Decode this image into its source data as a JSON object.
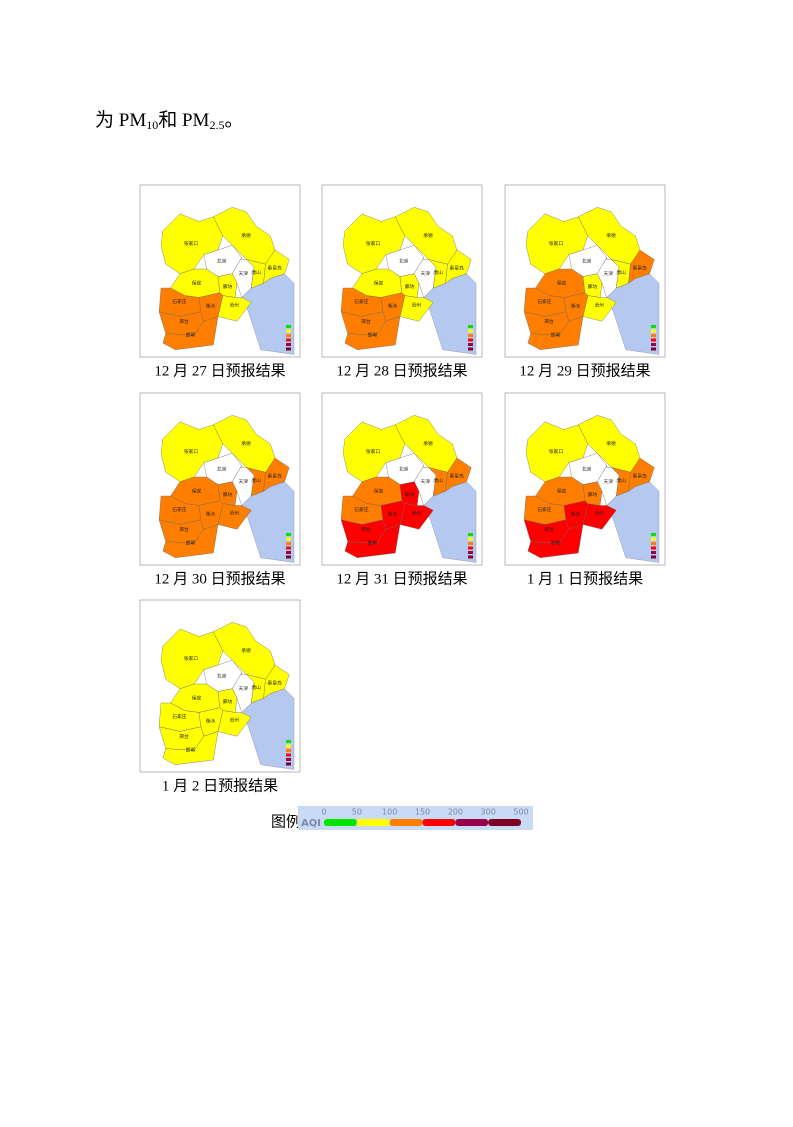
{
  "intro": {
    "parts": [
      "为 PM",
      "10",
      "和 PM",
      "2.5",
      "。"
    ]
  },
  "regions": [
    "张家口",
    "承德",
    "北京",
    "天津",
    "唐山",
    "秦皇岛",
    "保定",
    "廊坊",
    "沧州",
    "石家庄",
    "衡水",
    "邢台",
    "邯郸"
  ],
  "maps": [
    {
      "caption": "12 月 27 日预报结果",
      "fills": [
        "#ffff00",
        "#ffff00",
        "#ffffff",
        "#ffffff",
        "#ffff00",
        "#ffff00",
        "#ffff00",
        "#ffff00",
        "#ffff00",
        "#ff7e00",
        "#ff7e00",
        "#ff7e00",
        "#ff7e00"
      ]
    },
    {
      "caption": "12 月 28 日预报结果",
      "fills": [
        "#ffff00",
        "#ffff00",
        "#ffffff",
        "#ffffff",
        "#ffff00",
        "#ffff00",
        "#ffff00",
        "#ffff00",
        "#ffff00",
        "#ff7e00",
        "#ff7e00",
        "#ff7e00",
        "#ff7e00"
      ]
    },
    {
      "caption": "12 月 29 日预报结果",
      "fills": [
        "#ffff00",
        "#ffff00",
        "#ffffff",
        "#ffffff",
        "#ffff00",
        "#ff7e00",
        "#ff7e00",
        "#ffff00",
        "#ffff00",
        "#ff7e00",
        "#ff7e00",
        "#ff7e00",
        "#ff7e00"
      ]
    },
    {
      "caption": "12 月 30 日预报结果",
      "fills": [
        "#ffff00",
        "#ffff00",
        "#ffffff",
        "#ffffff",
        "#ff7e00",
        "#ff7e00",
        "#ff7e00",
        "#ff7e00",
        "#ff7e00",
        "#ff7e00",
        "#ff7e00",
        "#ff7e00",
        "#ff7e00"
      ]
    },
    {
      "caption": "12 月 31 日预报结果",
      "fills": [
        "#ffff00",
        "#ffff00",
        "#ffffff",
        "#ffffff",
        "#ff7e00",
        "#ff7e00",
        "#ff7e00",
        "#ff0000",
        "#ff0000",
        "#ff7e00",
        "#ff0000",
        "#ff0000",
        "#ff0000"
      ]
    },
    {
      "caption": "1 月 1 日预报结果",
      "fills": [
        "#ffff00",
        "#ffff00",
        "#ffffff",
        "#ffffff",
        "#ff7e00",
        "#ff7e00",
        "#ff7e00",
        "#ff7e00",
        "#ff0000",
        "#ff7e00",
        "#ff0000",
        "#ff0000",
        "#ff0000"
      ]
    },
    {
      "caption": "1 月 2 日预报结果",
      "fills": [
        "#ffff00",
        "#ffff00",
        "#ffffff",
        "#ffffff",
        "#ffff00",
        "#ffff00",
        "#ffff00",
        "#ffff00",
        "#ffff00",
        "#ffff00",
        "#ffff00",
        "#ffff00",
        "#ffff00"
      ]
    }
  ],
  "legend": {
    "label": "图例",
    "scale_title": "AQI",
    "ticks": [
      0,
      50,
      100,
      150,
      200,
      300,
      500
    ],
    "colors": [
      "#00e400",
      "#ffff00",
      "#ff7e00",
      "#ff0000",
      "#99004c",
      "#7e0023"
    ]
  }
}
